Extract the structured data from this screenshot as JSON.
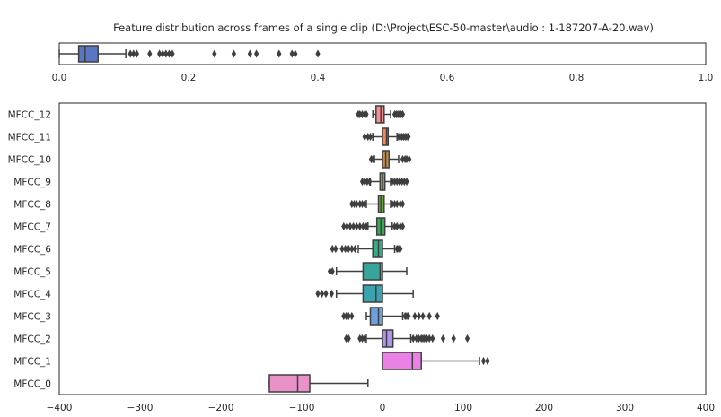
{
  "chart_data": [
    {
      "type": "boxplot",
      "orientation": "horizontal",
      "title": "Feature distribution across frames of a single clip (D:\\Project\\ESC-50-master\\audio : 1-187207-A-20.wav)",
      "xlim": [
        0.0,
        1.0
      ],
      "xticks": [
        "0.0",
        "0.2",
        "0.4",
        "0.6",
        "0.8",
        "1.0"
      ],
      "xtick_values": [
        0.0,
        0.2,
        0.4,
        0.6,
        0.8,
        1.0
      ],
      "grid": false,
      "legend": "none",
      "series": [
        {
          "color": "#5976c4",
          "whisker_low": 0.0,
          "q1": 0.03,
          "median": 0.04,
          "q3": 0.06,
          "whisker_high": 0.103,
          "outliers": [
            0.11,
            0.115,
            0.12,
            0.14,
            0.155,
            0.16,
            0.165,
            0.17,
            0.175,
            0.24,
            0.27,
            0.295,
            0.305,
            0.34,
            0.36,
            0.365,
            0.4
          ]
        }
      ]
    },
    {
      "type": "boxplot",
      "orientation": "horizontal",
      "xlim": [
        -400,
        400
      ],
      "xticks": [
        "−400",
        "−300",
        "−200",
        "−100",
        "0",
        "100",
        "200",
        "300",
        "400"
      ],
      "xtick_values": [
        -400,
        -300,
        -200,
        -100,
        0,
        100,
        200,
        300,
        400
      ],
      "grid": false,
      "legend": "none",
      "categories": [
        "MFCC_12",
        "MFCC_11",
        "MFCC_10",
        "MFCC_9",
        "MFCC_8",
        "MFCC_7",
        "MFCC_6",
        "MFCC_5",
        "MFCC_4",
        "MFCC_3",
        "MFCC_2",
        "MFCC_1",
        "MFCC_0"
      ],
      "boxes": [
        {
          "color": "#f38f91",
          "whisker_low": -12,
          "q1": -8,
          "median": -2,
          "q3": 2,
          "whisker_high": 10,
          "outliers": [
            -30,
            -28,
            -25,
            -22,
            -20,
            15,
            17,
            19,
            21,
            23,
            25
          ]
        },
        {
          "color": "#f4875a",
          "whisker_low": -12,
          "q1": 0,
          "median": 5,
          "q3": 7,
          "whisker_high": 18,
          "outliers": [
            -22,
            -18,
            -15,
            20,
            22,
            24,
            26,
            28,
            30,
            32
          ]
        },
        {
          "color": "#c38e4a",
          "whisker_low": -10,
          "q1": 0,
          "median": 4,
          "q3": 8,
          "whisker_high": 20,
          "outliers": [
            -14,
            -12,
            25,
            28,
            30,
            33
          ]
        },
        {
          "color": "#9aa13b",
          "whisker_low": -15,
          "q1": -3,
          "median": 0,
          "q3": 3,
          "whisker_high": 10,
          "outliers": [
            -25,
            -22,
            -19,
            -16,
            12,
            15,
            18,
            21,
            24,
            27,
            30
          ]
        },
        {
          "color": "#6cab43",
          "whisker_low": -20,
          "q1": -5,
          "median": -2,
          "q3": 2,
          "whisker_high": 10,
          "outliers": [
            -38,
            -35,
            -32,
            -28,
            -25,
            -22,
            12,
            15,
            18,
            22,
            25
          ]
        },
        {
          "color": "#3ba959",
          "whisker_low": -18,
          "q1": -7,
          "median": -2,
          "q3": 3,
          "whisker_high": 12,
          "outliers": [
            -48,
            -44,
            -40,
            -36,
            -32,
            -28,
            -24,
            -20,
            15,
            18,
            22,
            25
          ]
        },
        {
          "color": "#36ab8a",
          "whisker_low": -30,
          "q1": -12,
          "median": -5,
          "q3": 0,
          "whisker_high": 15,
          "outliers": [
            -62,
            -58,
            -50,
            -46,
            -42,
            -38,
            -34,
            18,
            20,
            22
          ]
        },
        {
          "color": "#38a59b",
          "whisker_low": -57,
          "q1": -24,
          "median": -3,
          "q3": 0,
          "whisker_high": 30,
          "outliers": [
            -65,
            -62
          ]
        },
        {
          "color": "#3ba3b0",
          "whisker_low": -57,
          "q1": -24,
          "median": -8,
          "q3": 0,
          "whisker_high": 38,
          "outliers": [
            -80,
            -75,
            -70,
            -63
          ]
        },
        {
          "color": "#6e9fdd",
          "whisker_low": -20,
          "q1": -15,
          "median": -5,
          "q3": 0,
          "whisker_high": 25,
          "outliers": [
            -48,
            -45,
            -42,
            -38,
            28,
            30,
            32,
            40,
            45,
            50,
            58,
            68
          ]
        },
        {
          "color": "#ae96e8",
          "whisker_low": -20,
          "q1": 0,
          "median": 5,
          "q3": 13,
          "whisker_high": 35,
          "outliers": [
            -45,
            -42,
            -28,
            -25,
            -22,
            38,
            42,
            45,
            48,
            50,
            52,
            55,
            58,
            62,
            75,
            88,
            105
          ]
        },
        {
          "color": "#ea82e5",
          "whisker_low": 0,
          "q1": 0,
          "median": 37,
          "q3": 48,
          "whisker_high": 120,
          "outliers": [
            125,
            130
          ]
        },
        {
          "color": "#e992c7",
          "whisker_low": -140,
          "q1": -140,
          "median": -105,
          "q3": -90,
          "whisker_high": -18,
          "outliers": []
        }
      ]
    }
  ]
}
